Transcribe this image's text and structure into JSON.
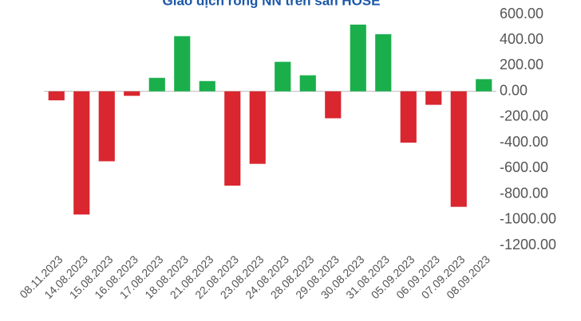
{
  "chart_data": {
    "type": "bar",
    "title": "Giao dịch ròng NN trên sàn HOSE",
    "categories": [
      "08.11.2023",
      "14.08.2023",
      "15.08.2023",
      "16.08.2023",
      "17.08.2023",
      "18.08.2023",
      "21.08.2023",
      "22.08.2023",
      "23.08.2023",
      "24.08.2023",
      "28.08.2023",
      "29.08.2023",
      "30.08.2023",
      "31.08.2023",
      "05.09.2023",
      "06.09.2023",
      "07.09.2023",
      "08.09.2023"
    ],
    "values": [
      -70,
      -960,
      -545,
      -35,
      105,
      430,
      80,
      -735,
      -565,
      230,
      125,
      -210,
      520,
      445,
      -400,
      -105,
      -900,
      95
    ],
    "positive_color": "#1aaf4b",
    "negative_color": "#d9262f",
    "ylim": [
      -1200,
      600
    ],
    "yticks": [
      {
        "value": 600,
        "label": "600.00"
      },
      {
        "value": 400,
        "label": "400.00"
      },
      {
        "value": 200,
        "label": "200.00"
      },
      {
        "value": 0,
        "label": "0.00"
      },
      {
        "value": -200,
        "label": "-200.00"
      },
      {
        "value": -400,
        "label": "-400.00"
      },
      {
        "value": -600,
        "label": "-600.00"
      },
      {
        "value": -800,
        "label": "-800.00"
      },
      {
        "value": -1000,
        "label": "-1000.00"
      },
      {
        "value": -1200,
        "label": "-1200.00"
      }
    ],
    "y_axis_side": "right",
    "grid": false
  }
}
